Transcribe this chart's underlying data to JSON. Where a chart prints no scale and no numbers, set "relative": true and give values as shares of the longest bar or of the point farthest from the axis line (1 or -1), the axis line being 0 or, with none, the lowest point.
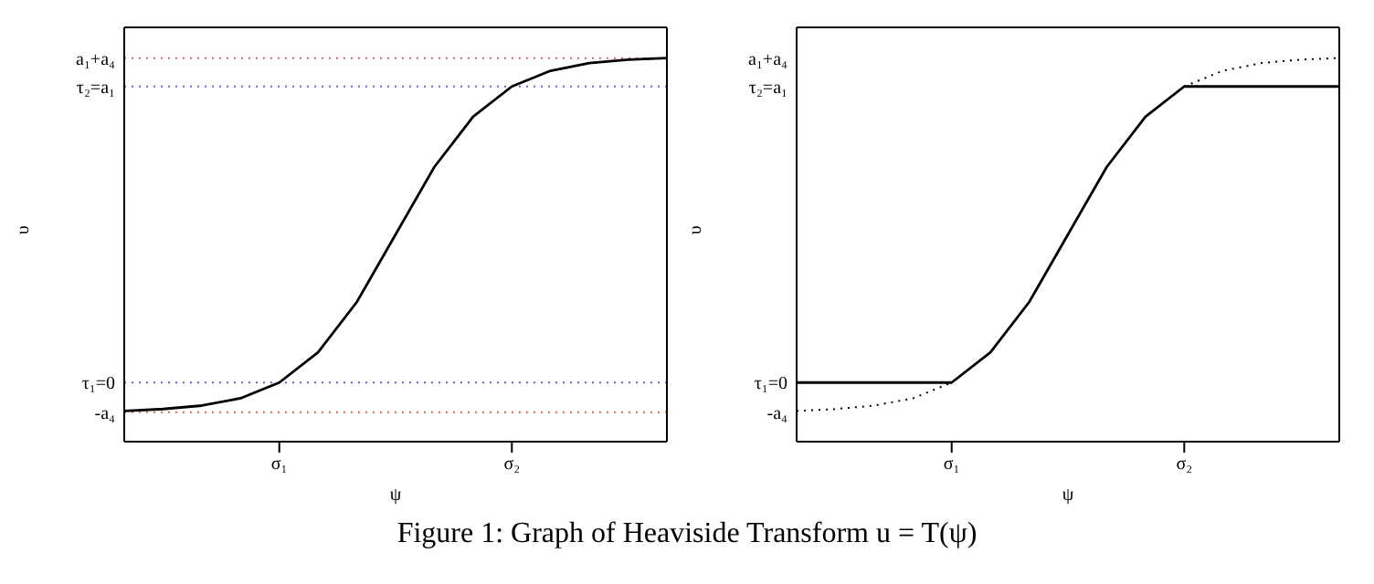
{
  "chart_data": [
    {
      "type": "line",
      "relative": true,
      "xlabel": "ψ",
      "ylabel": "υ",
      "categories": [
        null,
        null,
        null,
        null,
        "σ₁",
        null,
        null,
        null,
        null,
        null,
        "σ₂",
        null,
        null,
        null,
        null
      ],
      "ref_lines": [
        {
          "axis": "y",
          "value": 1.0,
          "label": "a₁+a₄",
          "color": "#e06060",
          "line_style": "dotted"
        },
        {
          "axis": "y",
          "value": 0.926,
          "label": "τ₂=a₁",
          "color": "#6060e0",
          "line_style": "dotted"
        },
        {
          "axis": "y",
          "value": 0.154,
          "label": "τ₁=0",
          "color": "#6060e0",
          "line_style": "dotted"
        },
        {
          "axis": "y",
          "value": 0.077,
          "label": "-a₄",
          "color": "#e06060",
          "line_style": "dotted"
        }
      ],
      "series": [
        {
          "color": "#000000",
          "line_style": "solid",
          "values": [
            0.08,
            0.085,
            0.094,
            0.113,
            0.154,
            0.233,
            0.364,
            0.54,
            0.716,
            0.847,
            0.926,
            0.967,
            0.987,
            0.996,
            1.0
          ]
        }
      ],
      "annotations": [
        "Figure 1: Graph of Heaviside Transform u = T(ψ)"
      ]
    },
    {
      "type": "line",
      "relative": true,
      "xlabel": "ψ",
      "ylabel": "υ",
      "categories": [
        null,
        null,
        null,
        null,
        "σ₁",
        null,
        null,
        null,
        null,
        null,
        "σ₂",
        null,
        null,
        null,
        null
      ],
      "series": [
        {
          "color": "#000000",
          "line_style": "solid",
          "values": [
            0.154,
            0.154,
            0.154,
            0.154,
            0.154,
            0.233,
            0.364,
            0.54,
            0.716,
            0.847,
            0.926,
            0.926,
            0.926,
            0.926,
            0.926
          ]
        },
        {
          "color": "#000000",
          "line_style": "dotted",
          "values": [
            0.08,
            0.085,
            0.094,
            0.113,
            0.154,
            null,
            null,
            null,
            null,
            null,
            0.926,
            0.967,
            0.987,
            0.996,
            1.0
          ]
        }
      ],
      "annotations": [
        "a₁+a₄",
        "τ₂=a₁",
        "τ₁=0",
        "-a₄"
      ]
    }
  ]
}
